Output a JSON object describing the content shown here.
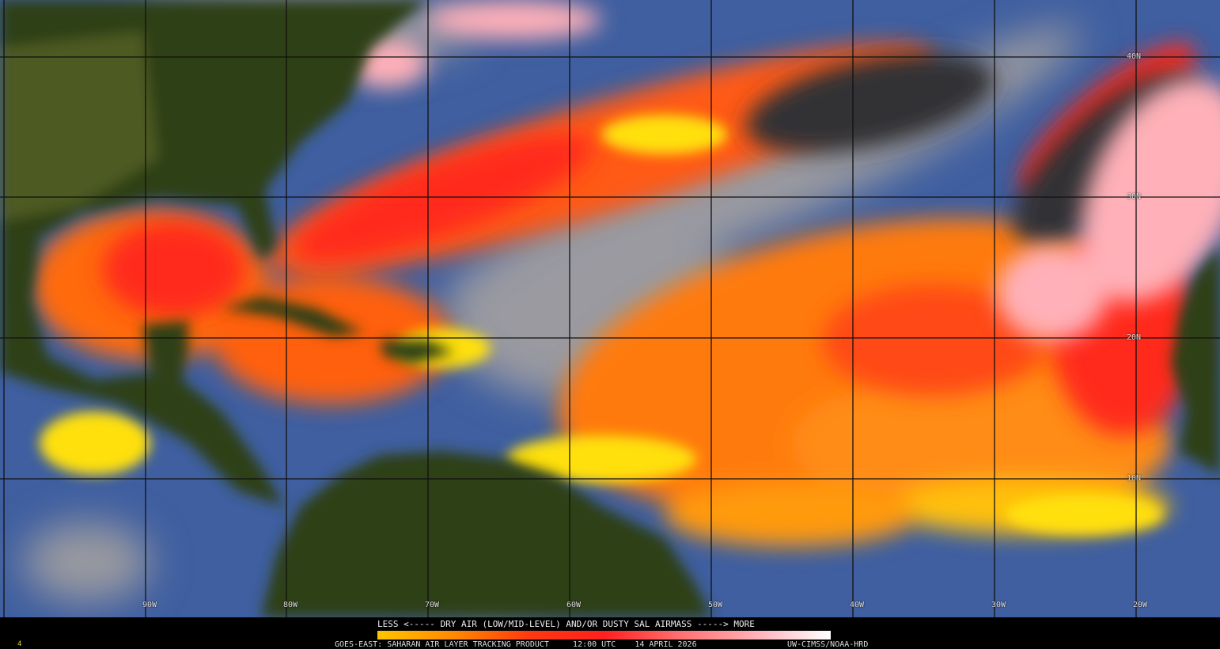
{
  "product": {
    "title": "GOES-EAST: SAHARAN AIR LAYER TRACKING PRODUCT",
    "time": "12:00 UTC",
    "date": "14 APRIL 2026",
    "credit": "UW-CIMSS/NOAA-HRD",
    "corner_mark": "4"
  },
  "legend": {
    "text": "LESS <----- DRY AIR (LOW/MID-LEVEL) AND/OR DUSTY SAL AIRMASS -----> MORE",
    "colors": [
      "#ffc400",
      "#ff8a00",
      "#ff3a10",
      "#ff2020",
      "#ff7070",
      "#ffb0b8",
      "#ffffff"
    ]
  },
  "grid": {
    "latitude_labels": [
      "40N",
      "30N",
      "20N",
      "10N"
    ],
    "longitude_labels": [
      "90W",
      "80W",
      "70W",
      "60W",
      "50W",
      "40W",
      "30W",
      "20W"
    ]
  },
  "colors": {
    "ocean": "#3f5fa0",
    "land": "#2b3a12",
    "land_light": "#4d5a22",
    "cloud": "#b8b8b8",
    "dark_cloud": "#333333",
    "sal_orange": "#ff7a10",
    "sal_red": "#ff3a1a",
    "sal_yellow": "#ffe010",
    "sal_pink": "#ffb0b8"
  }
}
